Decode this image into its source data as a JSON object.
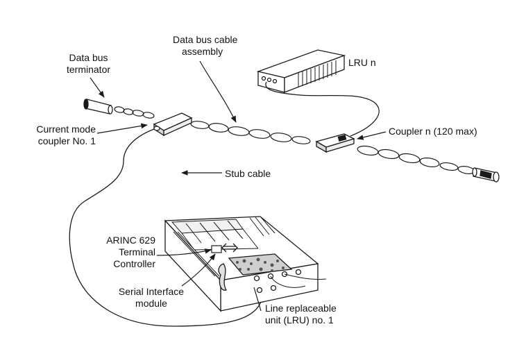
{
  "labels": {
    "data_bus_terminator": [
      "Data bus",
      "terminator"
    ],
    "data_bus_cable_assembly": [
      "Data bus cable",
      "assembly"
    ],
    "lru_n": "LRU n",
    "current_mode_coupler": [
      "Current mode",
      "coupler No. 1"
    ],
    "coupler_n": "Coupler n (120 max)",
    "stub_cable": "Stub cable",
    "arinc_terminal_controller": [
      "ARINC 629",
      "Terminal",
      "Controller"
    ],
    "serial_interface_module": [
      "Serial Interface",
      "module"
    ],
    "line_replaceable_unit": [
      "Line replaceable",
      "unit (LRU) no. 1"
    ]
  },
  "colors": {
    "ink": "#1a1a1a",
    "paper": "#ffffff"
  },
  "icons": {
    "bidirectional_arrow": "left-right-arrow-icon"
  }
}
